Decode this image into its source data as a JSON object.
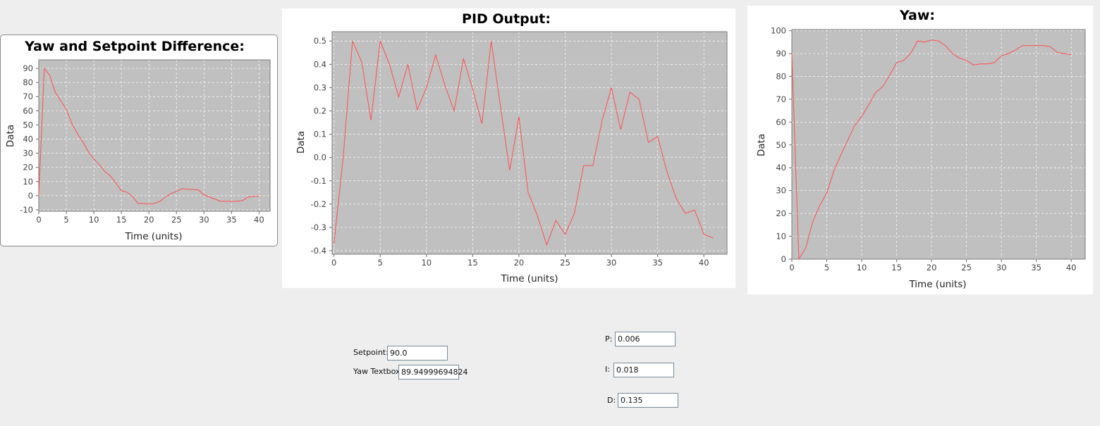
{
  "colors": {
    "series": "#ff4f4f",
    "plot_background": "#c0c0c0",
    "grid": "#ffffff"
  },
  "chart_data": [
    {
      "id": "diff",
      "type": "line",
      "title": "Yaw and Setpoint Difference:",
      "xlabel": "Time (units)",
      "ylabel": "Data",
      "xlim": [
        0,
        42
      ],
      "ylim": [
        -11,
        96
      ],
      "xticks": [
        0,
        5,
        10,
        15,
        20,
        25,
        30,
        35,
        40
      ],
      "yticks": [
        -10,
        0,
        10,
        20,
        30,
        40,
        50,
        60,
        70,
        80,
        90
      ],
      "grid": true,
      "series": [
        {
          "x": [
            0,
            1,
            2,
            3,
            4,
            5,
            6,
            7,
            8,
            9,
            10,
            11,
            12,
            13,
            14,
            15,
            16,
            17,
            18,
            19,
            20,
            21,
            22,
            23,
            24,
            25,
            26,
            27,
            28,
            29,
            30,
            31,
            32,
            33,
            34,
            35,
            36,
            37,
            38,
            39,
            40
          ],
          "y": [
            0,
            90,
            85,
            73,
            67,
            61,
            51,
            44,
            38,
            31,
            26,
            22,
            17,
            14,
            9,
            3.5,
            2.5,
            -0.5,
            -5.5,
            -5.5,
            -6,
            -5.5,
            -4,
            -1,
            1.5,
            3,
            5,
            4.5,
            4.5,
            4,
            0.5,
            -1,
            -2.5,
            -4,
            -4,
            -4,
            -4,
            -3.5,
            -1,
            -0.5,
            -0.5
          ]
        }
      ]
    },
    {
      "id": "pid",
      "type": "line",
      "title": "PID Output:",
      "xlabel": "Time (units)",
      "ylabel": "Data",
      "xlim": [
        -0.2,
        42.5
      ],
      "ylim": [
        -0.415,
        0.54
      ],
      "xticks": [
        0,
        5,
        10,
        15,
        20,
        25,
        30,
        35,
        40
      ],
      "yticks": [
        -0.4,
        -0.3,
        -0.2,
        -0.1,
        0.0,
        0.1,
        0.2,
        0.3,
        0.4,
        0.5
      ],
      "ytick_labels": [
        "-0.4",
        "-0.3",
        "-0.2",
        "-0.1",
        "0.0",
        "0.1",
        "0.2",
        "0.3",
        "0.4",
        "0.5"
      ],
      "grid": true,
      "series": [
        {
          "x": [
            0,
            1,
            2,
            3,
            4,
            5,
            6,
            7,
            8,
            9,
            10,
            11,
            12,
            13,
            14,
            15,
            16,
            17,
            18,
            19,
            20,
            21,
            22,
            23,
            24,
            25,
            26,
            27,
            28,
            29,
            30,
            31,
            32,
            33,
            34,
            35,
            36,
            37,
            38,
            39,
            40,
            41
          ],
          "y": [
            -0.37,
            0.0,
            0.5,
            0.41,
            0.16,
            0.5,
            0.4,
            0.26,
            0.4,
            0.205,
            0.3,
            0.44,
            0.31,
            0.2,
            0.425,
            0.295,
            0.145,
            0.5,
            0.22,
            -0.055,
            0.175,
            -0.15,
            -0.25,
            -0.375,
            -0.27,
            -0.33,
            -0.24,
            -0.035,
            -0.035,
            0.16,
            0.3,
            0.12,
            0.28,
            0.25,
            0.065,
            0.09,
            -0.06,
            -0.175,
            -0.24,
            -0.225,
            -0.33,
            -0.345
          ]
        }
      ]
    },
    {
      "id": "yaw",
      "type": "line",
      "title": "Yaw:",
      "xlabel": "Time (units)",
      "ylabel": "Data",
      "xlim": [
        0,
        42
      ],
      "ylim": [
        0,
        100.5
      ],
      "xticks": [
        0,
        5,
        10,
        15,
        20,
        25,
        30,
        35,
        40
      ],
      "yticks": [
        0,
        10,
        20,
        30,
        40,
        50,
        60,
        70,
        80,
        90,
        100
      ],
      "grid": true,
      "series": [
        {
          "x": [
            0,
            1,
            2,
            3,
            4,
            5,
            6,
            7,
            8,
            9,
            10,
            11,
            12,
            13,
            14,
            15,
            16,
            17,
            18,
            19,
            20,
            21,
            22,
            23,
            24,
            25,
            26,
            27,
            28,
            29,
            30,
            31,
            32,
            33,
            34,
            35,
            36,
            37,
            38,
            39,
            40
          ],
          "y": [
            90,
            0,
            5,
            16.5,
            23.5,
            29,
            38.5,
            45.5,
            52,
            58.5,
            62.5,
            67.5,
            73,
            75.5,
            80.5,
            86,
            87,
            90,
            95.5,
            95,
            96,
            95.5,
            93.5,
            90,
            88,
            87,
            85,
            85.5,
            85.5,
            86,
            89,
            90,
            91.5,
            93.5,
            93.5,
            93.5,
            93.5,
            93,
            90.5,
            90,
            89.5
          ]
        }
      ]
    }
  ],
  "controls": {
    "setpoint": {
      "label": "Setpoint:",
      "value": "90.0"
    },
    "yaw_textbox": {
      "label": "Yaw Textbox",
      "value": "89.94999694824"
    },
    "p": {
      "label": "P:",
      "value": "0.006"
    },
    "i": {
      "label": "I:",
      "value": "0.018"
    },
    "d": {
      "label": "D:",
      "value": "0.135"
    }
  }
}
